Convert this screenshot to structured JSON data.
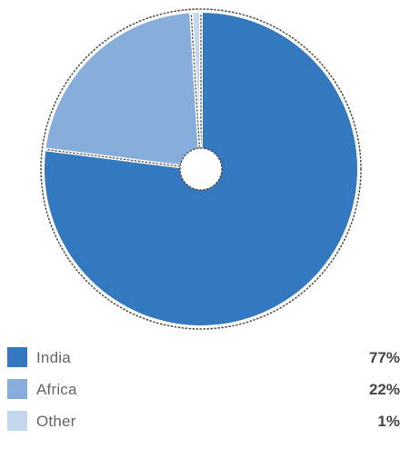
{
  "chart_data": {
    "type": "pie",
    "title": "",
    "categories": [
      "India",
      "Africa",
      "Other"
    ],
    "values": [
      77,
      22,
      1
    ],
    "value_labels": [
      "77%",
      "22%",
      "1%"
    ],
    "colors": [
      "#3478BF",
      "#87AEDA",
      "#C3D8EF"
    ],
    "style": "pie with hollow center and dotted outer ring",
    "legend_position": "bottom"
  },
  "legend": {
    "items": [
      {
        "label": "India",
        "value": "77%",
        "color": "#3478BF"
      },
      {
        "label": "Africa",
        "value": "22%",
        "color": "#87AEDA"
      },
      {
        "label": "Other",
        "value": "1%",
        "color": "#C3D8EF"
      }
    ]
  }
}
